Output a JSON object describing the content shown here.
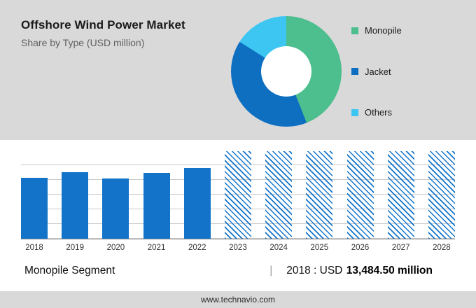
{
  "header": {
    "title": "Offshore Wind Power Market",
    "subtitle": "Share by Type (USD million)"
  },
  "donut": {
    "type": "pie",
    "hole": 0.45,
    "segments": [
      {
        "label": "Monopile",
        "value": 44,
        "color": "#4dbe8e"
      },
      {
        "label": "Jacket",
        "value": 40,
        "color": "#0e6fc1"
      },
      {
        "label": "Others",
        "value": 16,
        "color": "#3ec6f2"
      }
    ]
  },
  "chart_data": {
    "type": "bar",
    "categories": [
      "2018",
      "2019",
      "2020",
      "2021",
      "2022",
      "2023",
      "2024",
      "2025",
      "2026",
      "2027",
      "2028"
    ],
    "bar_color": "#1273c9",
    "grid": true,
    "y_axis_labels_visible": false,
    "bars": [
      {
        "year": "2018",
        "height_pct": 70,
        "value": 13484.5,
        "hatched": false
      },
      {
        "year": "2019",
        "height_pct": 76,
        "value": 14650,
        "hatched": false
      },
      {
        "year": "2020",
        "height_pct": 69,
        "value": 13290,
        "hatched": false
      },
      {
        "year": "2021",
        "height_pct": 75,
        "value": 14450,
        "hatched": false
      },
      {
        "year": "2022",
        "height_pct": 81,
        "value": 15600,
        "hatched": false
      },
      {
        "year": "2023",
        "height_pct": 100,
        "value": null,
        "hatched": true
      },
      {
        "year": "2024",
        "height_pct": 100,
        "value": null,
        "hatched": true
      },
      {
        "year": "2025",
        "height_pct": 100,
        "value": null,
        "hatched": true
      },
      {
        "year": "2026",
        "height_pct": 100,
        "value": null,
        "hatched": true
      },
      {
        "year": "2027",
        "height_pct": 100,
        "value": null,
        "hatched": true
      },
      {
        "year": "2028",
        "height_pct": 100,
        "value": null,
        "hatched": true
      }
    ],
    "note": "2023-2028 drawn as full-height hatched forecast placeholders; only the 2018 value (USD 13,484.50 million) is labeled on screen"
  },
  "footer": {
    "segment_label": "Monopile Segment",
    "separator": "|",
    "stat_prefix": "2018 : USD",
    "stat_value": "13,484.50 million",
    "website": "www.technavio.com"
  }
}
